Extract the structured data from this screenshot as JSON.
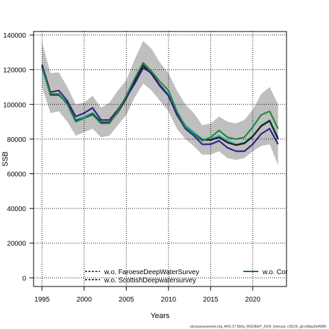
{
  "chart_data": {
    "type": "line",
    "xlabel": "Years",
    "ylabel": "SSB",
    "xlim": [
      1994,
      2024
    ],
    "ylim": [
      -5000,
      142000
    ],
    "xticks": [
      1995,
      2000,
      2005,
      2010,
      2015,
      2020
    ],
    "yticks": [
      0,
      20000,
      40000,
      60000,
      80000,
      100000,
      120000,
      140000
    ],
    "grid": true,
    "legend": {
      "placement": "bottom",
      "entries": [
        {
          "label": "w.o. FaroeseDeepWaterSurvey",
          "color": "#1d5a7a",
          "style": "dashed"
        },
        {
          "label": "w.o. ScottishDeepwatersurvey",
          "color": "#0c5a3a",
          "style": "dashed"
        },
        {
          "label": "w.o. Cor",
          "color": "#1a7a3a",
          "style": "solid"
        }
      ]
    },
    "caption": "stockassessment.org, ARU.27.5b6a_WGDEEP_2024_forecast, r18120, git:e38aa2b498f0",
    "confidence_band": {
      "x": [
        1995,
        1996,
        1997,
        1998,
        1999,
        2000,
        2001,
        2002,
        2003,
        2004,
        2005,
        2006,
        2007,
        2008,
        2009,
        2010,
        2011,
        2012,
        2013,
        2014,
        2015,
        2016,
        2017,
        2018,
        2019,
        2020,
        2021,
        2022,
        2023
      ],
      "upper": [
        136000,
        118000,
        118500,
        110000,
        100000,
        101000,
        105000,
        98000,
        101000,
        108000,
        114000,
        126000,
        136500,
        132000,
        124000,
        118000,
        108000,
        100000,
        95000,
        88000,
        89000,
        93000,
        90000,
        89000,
        91000,
        97000,
        106000,
        110000,
        100000
      ],
      "lower": [
        110000,
        95000,
        96000,
        90000,
        82000,
        84000,
        86000,
        81000,
        82000,
        88000,
        94000,
        104000,
        112000,
        108000,
        102000,
        96000,
        86000,
        80000,
        76000,
        71000,
        71000,
        73000,
        69000,
        68000,
        69000,
        73000,
        76000,
        77000,
        65000
      ]
    },
    "series": [
      {
        "name": "w.o. FaroeseDeepWaterSurvey",
        "color": "#3aaaba",
        "values": [
          122000,
          106000,
          106000,
          101000,
          91000,
          93000,
          95000,
          90000,
          90000,
          96000,
          104000,
          114000,
          123000,
          118000,
          111000,
          106000,
          95000,
          88000,
          84000,
          80000,
          80000,
          82000,
          79000,
          77000,
          78000,
          82000,
          88000,
          91000,
          81000
        ]
      },
      {
        "name": "w.o. ScottishDeepwatersurvey",
        "color": "#1a1a1a",
        "values": [
          122000,
          105500,
          105500,
          100500,
          90500,
          92000,
          94500,
          89500,
          89500,
          95500,
          103500,
          113500,
          122500,
          117500,
          110500,
          105000,
          94000,
          87000,
          83000,
          79500,
          79500,
          81000,
          78000,
          76500,
          77500,
          81500,
          87500,
          90500,
          80000
        ]
      },
      {
        "name": "",
        "color": "#31208a",
        "values": [
          123000,
          107000,
          108000,
          102000,
          93000,
          95000,
          98000,
          91000,
          91000,
          97000,
          104000,
          112000,
          121000,
          118000,
          111000,
          105000,
          94000,
          86000,
          82000,
          77000,
          77000,
          79000,
          75000,
          73000,
          73000,
          77000,
          83000,
          86000,
          77000
        ]
      },
      {
        "name": "w.o. Cor",
        "color": "#1f8a3c",
        "values": [
          121000,
          106000,
          106000,
          100000,
          90000,
          92000,
          94000,
          89000,
          89000,
          96000,
          105000,
          115000,
          124000,
          119000,
          113000,
          108000,
          96000,
          87000,
          83000,
          79000,
          81000,
          85000,
          81000,
          80000,
          81000,
          87000,
          94000,
          96000,
          86000
        ]
      }
    ]
  }
}
